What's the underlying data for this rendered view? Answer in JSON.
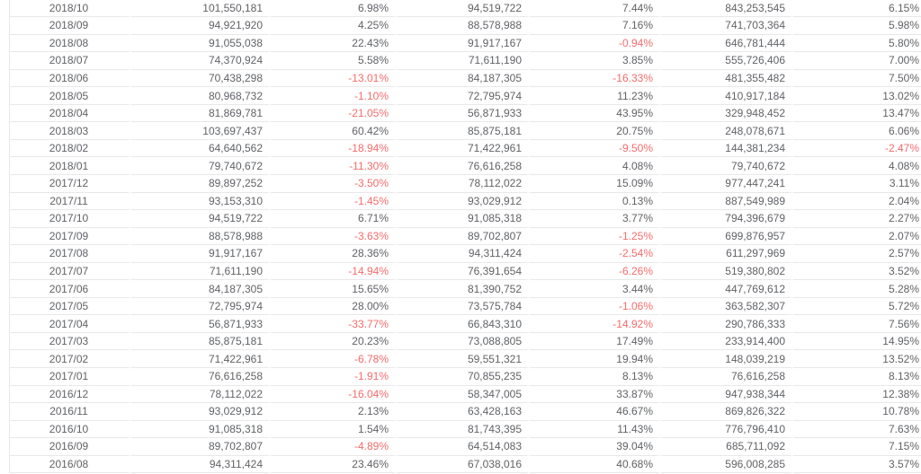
{
  "table": {
    "columns": [
      "month",
      "value_a",
      "change_a",
      "value_b",
      "change_b",
      "value_c",
      "change_c"
    ],
    "rows": [
      [
        "2018/10",
        "101,550,181",
        "6.98%",
        "94,519,722",
        "7.44%",
        "843,253,545",
        "6.15%"
      ],
      [
        "2018/09",
        "94,921,920",
        "4.25%",
        "88,578,988",
        "7.16%",
        "741,703,364",
        "5.98%"
      ],
      [
        "2018/08",
        "91,055,038",
        "22.43%",
        "91,917,167",
        "-0.94%",
        "646,781,444",
        "5.80%"
      ],
      [
        "2018/07",
        "74,370,924",
        "5.58%",
        "71,611,190",
        "3.85%",
        "555,726,406",
        "7.00%"
      ],
      [
        "2018/06",
        "70,438,298",
        "-13.01%",
        "84,187,305",
        "-16.33%",
        "481,355,482",
        "7.50%"
      ],
      [
        "2018/05",
        "80,968,732",
        "-1.10%",
        "72,795,974",
        "11.23%",
        "410,917,184",
        "13.02%"
      ],
      [
        "2018/04",
        "81,869,781",
        "-21.05%",
        "56,871,933",
        "43.95%",
        "329,948,452",
        "13.47%"
      ],
      [
        "2018/03",
        "103,697,437",
        "60.42%",
        "85,875,181",
        "20.75%",
        "248,078,671",
        "6.06%"
      ],
      [
        "2018/02",
        "64,640,562",
        "-18.94%",
        "71,422,961",
        "-9.50%",
        "144,381,234",
        "-2.47%"
      ],
      [
        "2018/01",
        "79,740,672",
        "-11.30%",
        "76,616,258",
        "4.08%",
        "79,740,672",
        "4.08%"
      ],
      [
        "2017/12",
        "89,897,252",
        "-3.50%",
        "78,112,022",
        "15.09%",
        "977,447,241",
        "3.11%"
      ],
      [
        "2017/11",
        "93,153,310",
        "-1.45%",
        "93,029,912",
        "0.13%",
        "887,549,989",
        "2.04%"
      ],
      [
        "2017/10",
        "94,519,722",
        "6.71%",
        "91,085,318",
        "3.77%",
        "794,396,679",
        "2.27%"
      ],
      [
        "2017/09",
        "88,578,988",
        "-3.63%",
        "89,702,807",
        "-1.25%",
        "699,876,957",
        "2.07%"
      ],
      [
        "2017/08",
        "91,917,167",
        "28.36%",
        "94,311,424",
        "-2.54%",
        "611,297,969",
        "2.57%"
      ],
      [
        "2017/07",
        "71,611,190",
        "-14.94%",
        "76,391,654",
        "-6.26%",
        "519,380,802",
        "3.52%"
      ],
      [
        "2017/06",
        "84,187,305",
        "15.65%",
        "81,390,752",
        "3.44%",
        "447,769,612",
        "5.28%"
      ],
      [
        "2017/05",
        "72,795,974",
        "28.00%",
        "73,575,784",
        "-1.06%",
        "363,582,307",
        "5.72%"
      ],
      [
        "2017/04",
        "56,871,933",
        "-33.77%",
        "66,843,310",
        "-14.92%",
        "290,786,333",
        "7.56%"
      ],
      [
        "2017/03",
        "85,875,181",
        "20.23%",
        "73,088,805",
        "17.49%",
        "233,914,400",
        "14.95%"
      ],
      [
        "2017/02",
        "71,422,961",
        "-6.78%",
        "59,551,321",
        "19.94%",
        "148,039,219",
        "13.52%"
      ],
      [
        "2017/01",
        "76,616,258",
        "-1.91%",
        "70,855,235",
        "8.13%",
        "76,616,258",
        "8.13%"
      ],
      [
        "2016/12",
        "78,112,022",
        "-16.04%",
        "58,347,005",
        "33.87%",
        "947,938,344",
        "12.38%"
      ],
      [
        "2016/11",
        "93,029,912",
        "2.13%",
        "63,428,163",
        "46.67%",
        "869,826,322",
        "10.78%"
      ],
      [
        "2016/10",
        "91,085,318",
        "1.54%",
        "81,743,395",
        "11.43%",
        "776,796,410",
        "7.63%"
      ],
      [
        "2016/09",
        "89,702,807",
        "-4.89%",
        "64,514,083",
        "39.04%",
        "685,711,092",
        "7.15%"
      ],
      [
        "2016/08",
        "94,311,424",
        "23.46%",
        "67,038,016",
        "40.68%",
        "596,008,285",
        "3.57%"
      ]
    ]
  },
  "colors": {
    "text": "#606266",
    "negative": "#f56c6c",
    "row_border": "#e8e8e8",
    "background": "#ffffff"
  }
}
